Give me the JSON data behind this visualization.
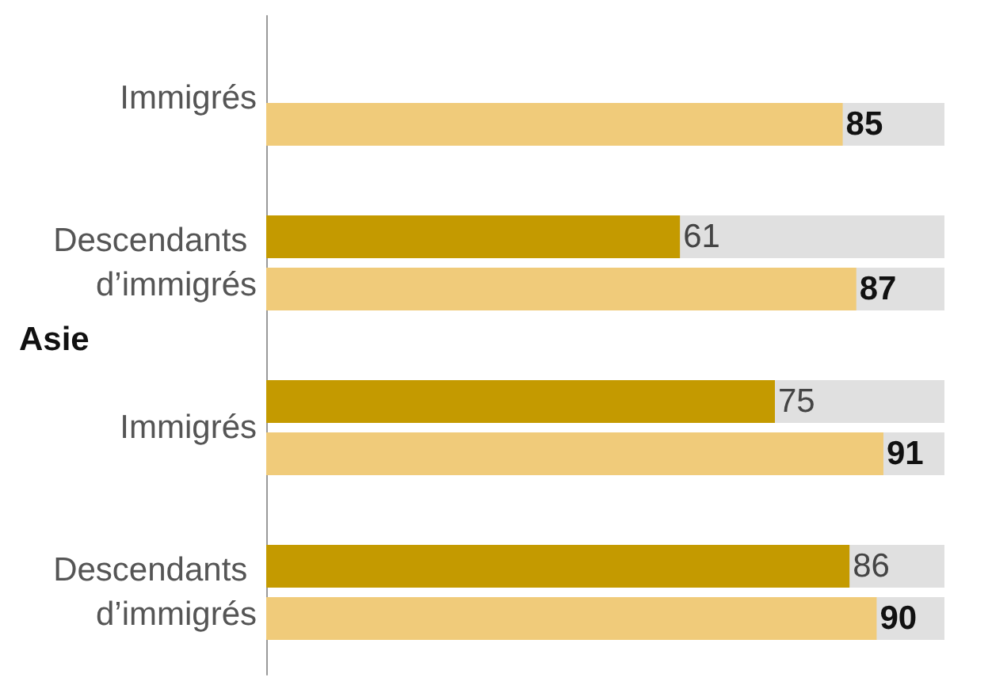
{
  "chart_data": {
    "type": "bar",
    "orientation": "horizontal",
    "categories": [
      "Immigrés",
      "Descendants d’immigrés",
      "Immigrés",
      "Descendants d’immigrés"
    ],
    "series": [
      {
        "color": "#c49a00",
        "values": [
          null,
          61,
          75,
          86
        ]
      },
      {
        "color": "#f0cb7a",
        "values": [
          85,
          87,
          91,
          90
        ]
      }
    ],
    "xlim": [
      0,
      100
    ],
    "tick_labels": "y",
    "data_labels": true,
    "annotations": [
      "Asie"
    ]
  }
}
